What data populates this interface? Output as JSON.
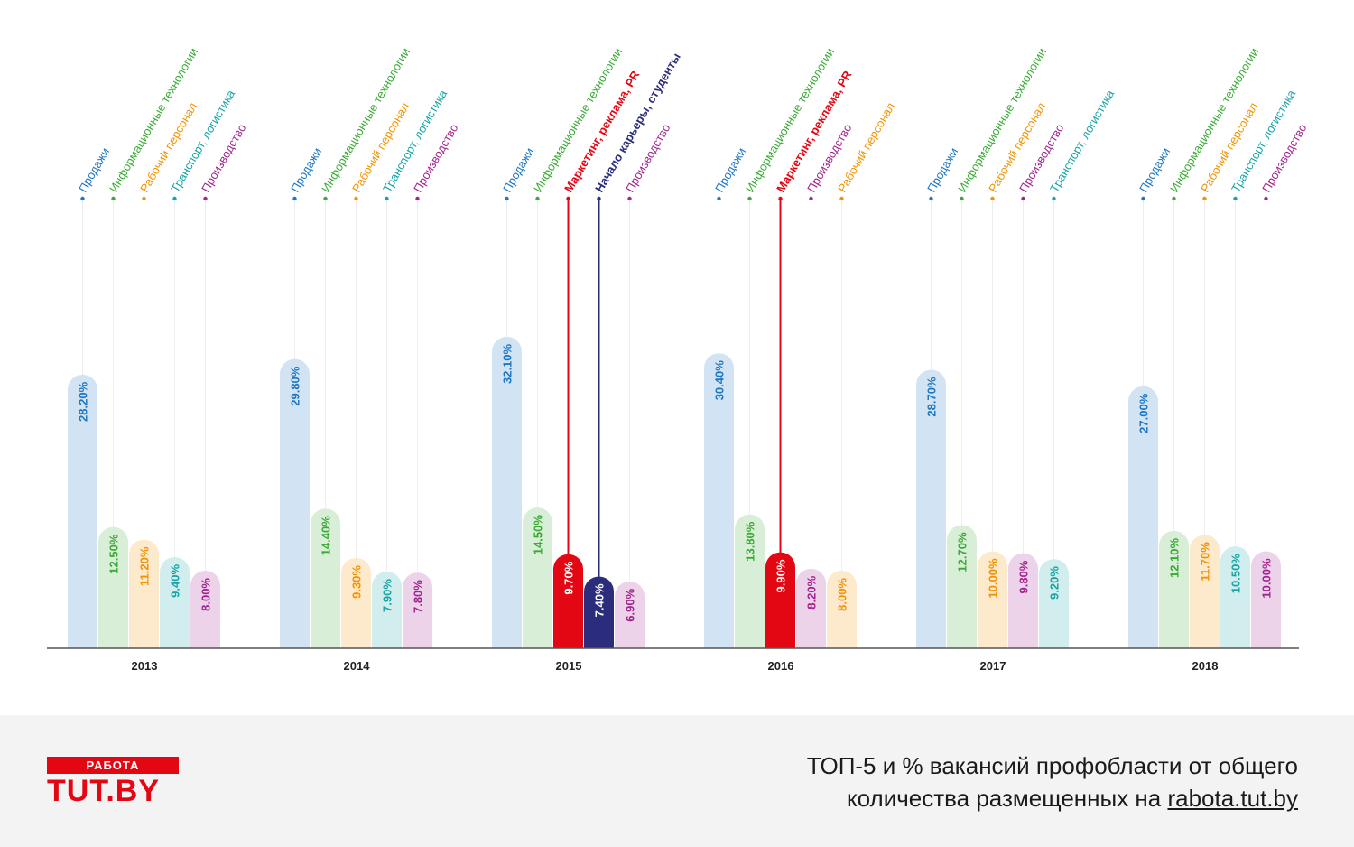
{
  "chart_data": {
    "type": "bar",
    "ylim": [
      0,
      35
    ],
    "groups": [
      {
        "year": "2013",
        "bars": [
          {
            "name": "Продажи",
            "value": 28.2,
            "label": "28.20%",
            "color": "#1f77c3"
          },
          {
            "name": "Информационные технологии",
            "value": 12.5,
            "label": "12.50%",
            "color": "#3aaa35"
          },
          {
            "name": "Рабочий персонал",
            "value": 11.2,
            "label": "11.20%",
            "color": "#f39200"
          },
          {
            "name": "Транспорт, логистика",
            "value": 9.4,
            "label": "9.40%",
            "color": "#17a3a6"
          },
          {
            "name": "Производство",
            "value": 8.0,
            "label": "8.00%",
            "color": "#a3248f"
          }
        ]
      },
      {
        "year": "2014",
        "bars": [
          {
            "name": "Продажи",
            "value": 29.8,
            "label": "29.80%",
            "color": "#1f77c3"
          },
          {
            "name": "Информационные технологии",
            "value": 14.4,
            "label": "14.40%",
            "color": "#3aaa35"
          },
          {
            "name": "Рабочий персонал",
            "value": 9.3,
            "label": "9.30%",
            "color": "#f39200"
          },
          {
            "name": "Транспорт, логистика",
            "value": 7.9,
            "label": "7.90%",
            "color": "#17a3a6"
          },
          {
            "name": "Производство",
            "value": 7.8,
            "label": "7.80%",
            "color": "#a3248f"
          }
        ]
      },
      {
        "year": "2015",
        "bars": [
          {
            "name": "Продажи",
            "value": 32.1,
            "label": "32.10%",
            "color": "#1f77c3"
          },
          {
            "name": "Информационные технологии",
            "value": 14.5,
            "label": "14.50%",
            "color": "#3aaa35"
          },
          {
            "name": "Маркетинг, реклама, PR",
            "value": 9.7,
            "label": "9.70%",
            "color": "#e30613",
            "highlight": true
          },
          {
            "name": "Начало карьеры, студенты",
            "value": 7.4,
            "label": "7.40%",
            "color": "#2b2d7c",
            "highlight": true
          },
          {
            "name": "Производство",
            "value": 6.9,
            "label": "6.90%",
            "color": "#a3248f"
          }
        ]
      },
      {
        "year": "2016",
        "bars": [
          {
            "name": "Продажи",
            "value": 30.4,
            "label": "30.40%",
            "color": "#1f77c3"
          },
          {
            "name": "Информационные технологии",
            "value": 13.8,
            "label": "13.80%",
            "color": "#3aaa35"
          },
          {
            "name": "Маркетинг, реклама, PR",
            "value": 9.9,
            "label": "9.90%",
            "color": "#e30613",
            "highlight": true
          },
          {
            "name": "Производство",
            "value": 8.2,
            "label": "8.20%",
            "color": "#a3248f"
          },
          {
            "name": "Рабочий персонал",
            "value": 8.0,
            "label": "8.00%",
            "color": "#f39200"
          }
        ]
      },
      {
        "year": "2017",
        "bars": [
          {
            "name": "Продажи",
            "value": 28.7,
            "label": "28.70%",
            "color": "#1f77c3"
          },
          {
            "name": "Информационные технологии",
            "value": 12.7,
            "label": "12.70%",
            "color": "#3aaa35"
          },
          {
            "name": "Рабочий персонал",
            "value": 10.0,
            "label": "10.00%",
            "color": "#f39200"
          },
          {
            "name": "Производство",
            "value": 9.8,
            "label": "9.80%",
            "color": "#a3248f"
          },
          {
            "name": "Транспорт, логистика",
            "value": 9.2,
            "label": "9.20%",
            "color": "#17a3a6"
          }
        ]
      },
      {
        "year": "2018",
        "bars": [
          {
            "name": "Продажи",
            "value": 27.0,
            "label": "27.00%",
            "color": "#1f77c3"
          },
          {
            "name": "Информационные технологии",
            "value": 12.1,
            "label": "12.10%",
            "color": "#3aaa35"
          },
          {
            "name": "Рабочий персонал",
            "value": 11.7,
            "label": "11.70%",
            "color": "#f39200"
          },
          {
            "name": "Транспорт, логистика",
            "value": 10.5,
            "label": "10.50%",
            "color": "#17a3a6"
          },
          {
            "name": "Производство",
            "value": 10.0,
            "label": "10.00%",
            "color": "#a3248f"
          }
        ]
      }
    ]
  },
  "footer": {
    "logo_top": "РАБОТА",
    "logo_bottom": "TUT.BY",
    "caption_line1": "ТОП-5 и % вакансий профобласти от общего",
    "caption_line2_text": "количества размещенных на ",
    "caption_link": "rabota.tut.by"
  }
}
